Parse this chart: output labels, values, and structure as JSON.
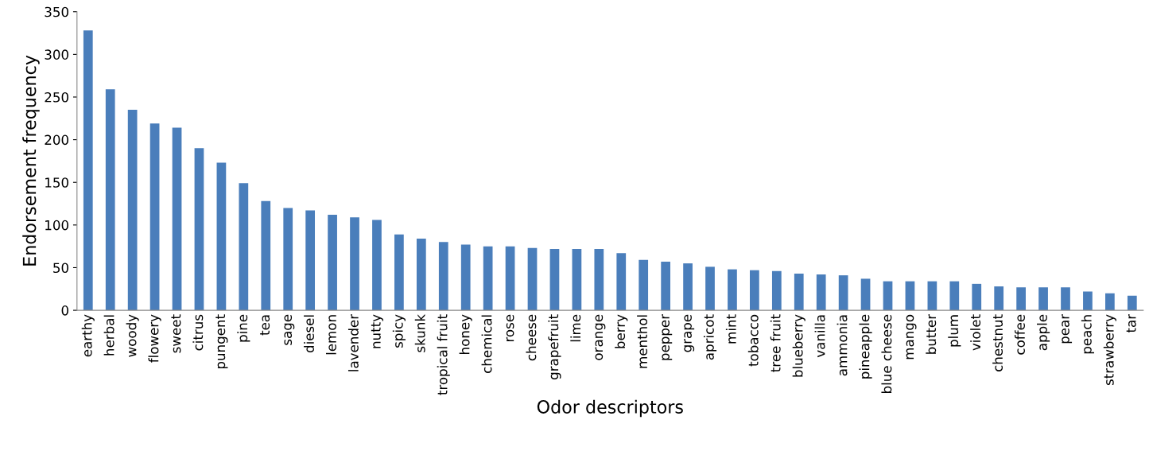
{
  "chart_data": {
    "type": "bar",
    "xlabel": "Odor descriptors",
    "ylabel": "Endorsement frequency",
    "categories": [
      "earthy",
      "herbal",
      "woody",
      "flowery",
      "sweet",
      "citrus",
      "pungent",
      "pine",
      "tea",
      "sage",
      "diesel",
      "lemon",
      "lavender",
      "nutty",
      "spicy",
      "skunk",
      "tropical fruit",
      "honey",
      "chemical",
      "rose",
      "cheese",
      "grapefruit",
      "lime",
      "orange",
      "berry",
      "menthol",
      "pepper",
      "grape",
      "apricot",
      "mint",
      "tobacco",
      "tree fruit",
      "blueberry",
      "vanilla",
      "ammonia",
      "pineapple",
      "blue cheese",
      "mango",
      "butter",
      "plum",
      "violet",
      "chestnut",
      "coffee",
      "apple",
      "pear",
      "peach",
      "strawberry",
      "tar"
    ],
    "values": [
      328,
      259,
      235,
      219,
      214,
      190,
      173,
      149,
      128,
      120,
      117,
      112,
      109,
      106,
      89,
      84,
      80,
      77,
      75,
      75,
      73,
      72,
      72,
      72,
      67,
      59,
      57,
      55,
      51,
      48,
      47,
      46,
      43,
      42,
      41,
      37,
      34,
      34,
      34,
      34,
      31,
      28,
      27,
      27,
      27,
      22,
      20,
      17
    ],
    "color": "#4a7ebb",
    "ylim": [
      0,
      350
    ],
    "yticks": [
      0,
      50,
      100,
      150,
      200,
      250,
      300,
      350
    ],
    "grid": false,
    "legend": false
  }
}
